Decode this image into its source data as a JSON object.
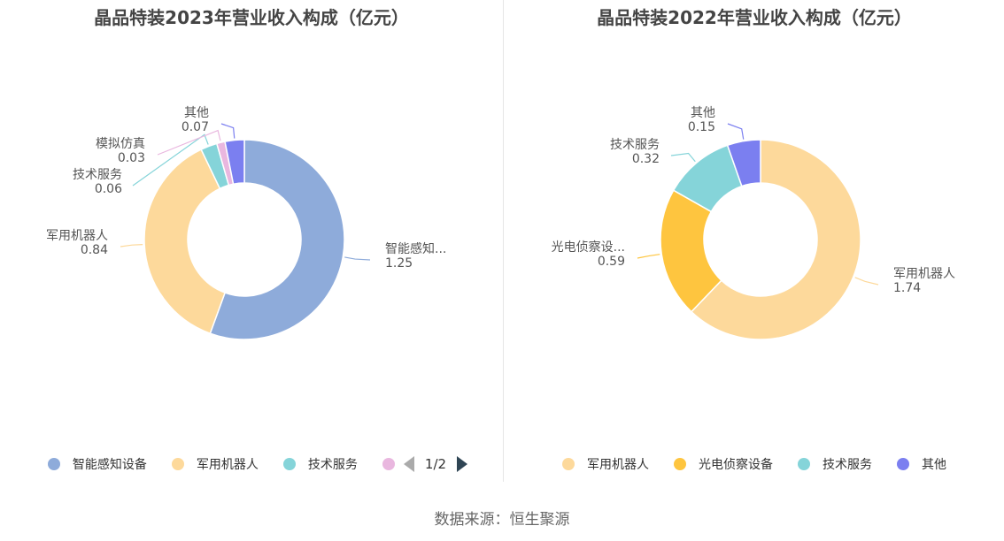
{
  "source": "数据来源：恒生聚源",
  "chart_data": [
    {
      "type": "pie",
      "donut": true,
      "title": "晶品特装2023年营业收入构成（亿元）",
      "slices": [
        {
          "name": "智能感知设备",
          "label": "智能感知...",
          "value": 1.25,
          "value_label": "1.25",
          "color": "#8eabda"
        },
        {
          "name": "军用机器人",
          "label": "军用机器人",
          "value": 0.84,
          "value_label": "0.84",
          "color": "#fdd99b"
        },
        {
          "name": "技术服务",
          "label": "技术服务",
          "value": 0.06,
          "value_label": "0.06",
          "color": "#85d4d9"
        },
        {
          "name": "模拟仿真",
          "label": "模拟仿真",
          "value": 0.03,
          "value_label": "0.03",
          "color": "#e9b7df"
        },
        {
          "name": "其他",
          "label": "其他",
          "value": 0.07,
          "value_label": "0.07",
          "color": "#7b7ff0"
        }
      ],
      "legend": {
        "placement": "bottom",
        "items": [
          "智能感知设备",
          "军用机器人",
          "技术服务"
        ],
        "page": "1/2"
      }
    },
    {
      "type": "pie",
      "donut": true,
      "title": "晶品特装2022年营业收入构成（亿元）",
      "slices": [
        {
          "name": "军用机器人",
          "label": "军用机器人",
          "value": 1.74,
          "value_label": "1.74",
          "color": "#fdd99b"
        },
        {
          "name": "光电侦察设备",
          "label": "光电侦察设...",
          "value": 0.59,
          "value_label": "0.59",
          "color": "#fec53f"
        },
        {
          "name": "技术服务",
          "label": "技术服务",
          "value": 0.32,
          "value_label": "0.32",
          "color": "#85d4d9"
        },
        {
          "name": "其他",
          "label": "其他",
          "value": 0.15,
          "value_label": "0.15",
          "color": "#7b7ff0"
        }
      ],
      "legend": {
        "placement": "bottom",
        "items": [
          "军用机器人",
          "光电侦察设备",
          "技术服务",
          "其他"
        ]
      }
    }
  ]
}
